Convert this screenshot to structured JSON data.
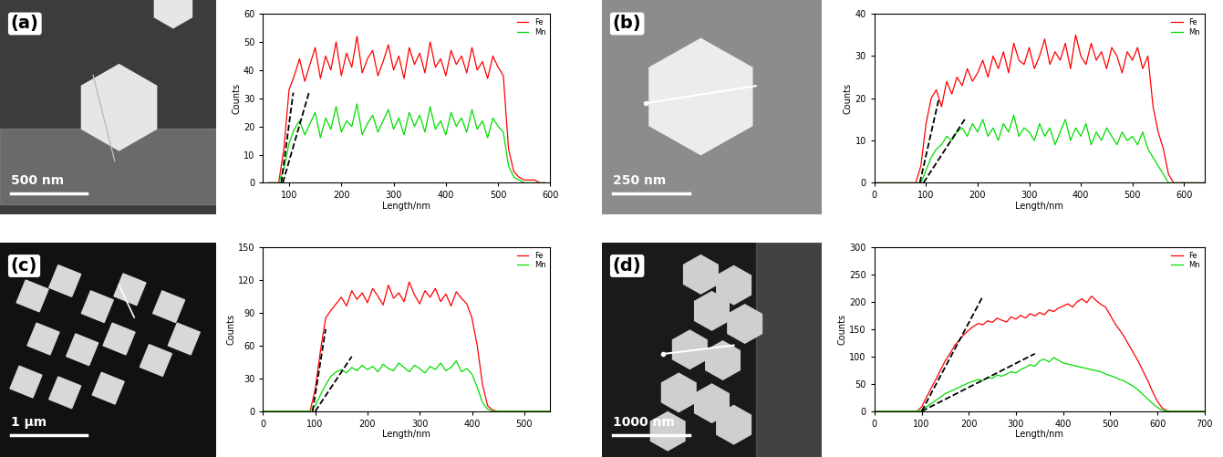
{
  "chart_data": [
    {
      "type": "line",
      "annotations": {
        "panel": "(a)",
        "scale_bar": "500 nm"
      },
      "x_label": "Length/nm",
      "y_label": "Counts",
      "legend": "upper right",
      "xlim": [
        50,
        600
      ],
      "xticks": [
        100,
        200,
        300,
        400,
        500,
        600
      ],
      "ylim": [
        0,
        60
      ],
      "yticks": [
        0,
        10,
        20,
        30,
        40,
        50,
        60
      ],
      "x": [
        60,
        70,
        80,
        90,
        100,
        110,
        120,
        130,
        140,
        150,
        160,
        170,
        180,
        190,
        200,
        210,
        220,
        230,
        240,
        250,
        260,
        270,
        280,
        290,
        300,
        310,
        320,
        330,
        340,
        350,
        360,
        370,
        380,
        390,
        400,
        410,
        420,
        430,
        440,
        450,
        460,
        470,
        480,
        490,
        500,
        510,
        520,
        530,
        540,
        550,
        560,
        570,
        580,
        590
      ],
      "series": [
        {
          "name": "Fe",
          "color": "#ff0000",
          "values": [
            0,
            0,
            0,
            12,
            33,
            38,
            44,
            36,
            42,
            48,
            37,
            45,
            40,
            50,
            38,
            46,
            41,
            52,
            39,
            44,
            47,
            38,
            43,
            49,
            40,
            45,
            37,
            48,
            42,
            46,
            39,
            50,
            41,
            44,
            38,
            47,
            42,
            45,
            39,
            48,
            40,
            43,
            37,
            45,
            41,
            38,
            12,
            4,
            2,
            1,
            1,
            1,
            0,
            0
          ]
        },
        {
          "name": "Mn",
          "color": "#00dd00",
          "values": [
            0,
            0,
            0,
            5,
            14,
            19,
            22,
            17,
            21,
            25,
            16,
            23,
            19,
            27,
            18,
            22,
            20,
            28,
            17,
            21,
            24,
            18,
            22,
            26,
            19,
            23,
            17,
            25,
            20,
            24,
            18,
            27,
            19,
            22,
            17,
            25,
            20,
            23,
            18,
            26,
            19,
            22,
            16,
            23,
            20,
            18,
            6,
            2,
            1,
            0,
            0,
            0,
            0,
            0
          ]
        }
      ],
      "guide_lines": [
        {
          "x": [
            85,
            108
          ],
          "y": [
            0,
            32
          ],
          "line_style": "dashed"
        },
        {
          "x": [
            88,
            138
          ],
          "y": [
            0,
            32
          ],
          "line_style": "dashed"
        }
      ]
    },
    {
      "type": "line",
      "annotations": {
        "panel": "(b)",
        "scale_bar": "250 nm"
      },
      "x_label": "Length/nm",
      "y_label": "Counts",
      "legend": "upper right",
      "xlim": [
        0,
        640
      ],
      "xticks": [
        0,
        100,
        200,
        300,
        400,
        500,
        600
      ],
      "ylim": [
        0,
        40
      ],
      "yticks": [
        0,
        10,
        20,
        30,
        40
      ],
      "x": [
        0,
        10,
        20,
        30,
        40,
        50,
        60,
        70,
        80,
        90,
        100,
        110,
        120,
        130,
        140,
        150,
        160,
        170,
        180,
        190,
        200,
        210,
        220,
        230,
        240,
        250,
        260,
        270,
        280,
        290,
        300,
        310,
        320,
        330,
        340,
        350,
        360,
        370,
        380,
        390,
        400,
        410,
        420,
        430,
        440,
        450,
        460,
        470,
        480,
        490,
        500,
        510,
        520,
        530,
        540,
        550,
        560,
        570,
        580,
        590,
        600,
        610,
        620,
        630,
        640
      ],
      "series": [
        {
          "name": "Fe",
          "color": "#ff0000",
          "values": [
            0,
            0,
            0,
            0,
            0,
            0,
            0,
            0,
            0,
            4,
            14,
            20,
            22,
            18,
            24,
            21,
            25,
            23,
            27,
            24,
            26,
            29,
            25,
            30,
            27,
            31,
            26,
            33,
            29,
            28,
            32,
            27,
            30,
            34,
            28,
            31,
            29,
            33,
            27,
            35,
            30,
            28,
            33,
            29,
            31,
            27,
            32,
            30,
            26,
            31,
            29,
            32,
            27,
            30,
            18,
            12,
            8,
            2,
            0,
            0,
            0,
            0,
            0,
            0,
            0
          ]
        },
        {
          "name": "Mn",
          "color": "#00dd00",
          "values": [
            0,
            0,
            0,
            0,
            0,
            0,
            0,
            0,
            0,
            0,
            3,
            6,
            8,
            9,
            11,
            10,
            12,
            13,
            11,
            14,
            12,
            15,
            11,
            13,
            10,
            14,
            12,
            16,
            11,
            13,
            12,
            10,
            14,
            11,
            13,
            9,
            12,
            15,
            10,
            13,
            11,
            14,
            9,
            12,
            10,
            13,
            11,
            9,
            12,
            10,
            11,
            9,
            12,
            8,
            6,
            4,
            2,
            0,
            0,
            0,
            0,
            0,
            0,
            0,
            0
          ]
        }
      ],
      "guide_lines": [
        {
          "x": [
            88,
            125
          ],
          "y": [
            0,
            20
          ],
          "line_style": "dashed"
        },
        {
          "x": [
            95,
            175
          ],
          "y": [
            0,
            15
          ],
          "line_style": "dashed"
        }
      ]
    },
    {
      "type": "line",
      "annotations": {
        "panel": "(c)",
        "scale_bar": "1 μm"
      },
      "x_label": "Length/nm",
      "y_label": "Counts",
      "legend": "upper right",
      "xlim": [
        0,
        550
      ],
      "xticks": [
        0,
        100,
        200,
        300,
        400,
        500
      ],
      "ylim": [
        0,
        150
      ],
      "yticks": [
        0,
        30,
        60,
        90,
        120,
        150
      ],
      "x": [
        0,
        10,
        20,
        30,
        40,
        50,
        60,
        70,
        80,
        90,
        100,
        110,
        120,
        130,
        140,
        150,
        160,
        170,
        180,
        190,
        200,
        210,
        220,
        230,
        240,
        250,
        260,
        270,
        280,
        290,
        300,
        310,
        320,
        330,
        340,
        350,
        360,
        370,
        380,
        390,
        400,
        410,
        420,
        430,
        440,
        450,
        460,
        470,
        480,
        490,
        500,
        510,
        520,
        530,
        540,
        550
      ],
      "series": [
        {
          "name": "Fe",
          "color": "#ff0000",
          "values": [
            0,
            0,
            0,
            0,
            0,
            0,
            0,
            0,
            0,
            0,
            20,
            55,
            85,
            92,
            98,
            104,
            96,
            110,
            102,
            108,
            99,
            112,
            105,
            97,
            115,
            103,
            108,
            100,
            118,
            106,
            98,
            110,
            104,
            112,
            100,
            107,
            96,
            109,
            103,
            98,
            85,
            60,
            25,
            5,
            1,
            0,
            0,
            0,
            0,
            0,
            0,
            0,
            0,
            0,
            0,
            0
          ]
        },
        {
          "name": "Mn",
          "color": "#00dd00",
          "values": [
            0,
            0,
            0,
            0,
            0,
            0,
            0,
            0,
            0,
            0,
            5,
            15,
            24,
            32,
            36,
            38,
            35,
            40,
            37,
            42,
            38,
            41,
            36,
            43,
            39,
            37,
            44,
            40,
            36,
            42,
            39,
            35,
            41,
            38,
            44,
            37,
            40,
            46,
            36,
            39,
            34,
            22,
            8,
            2,
            0,
            0,
            0,
            0,
            0,
            0,
            0,
            0,
            0,
            0,
            0,
            0
          ]
        }
      ],
      "guide_lines": [
        {
          "x": [
            95,
            120
          ],
          "y": [
            0,
            75
          ],
          "line_style": "dashed"
        },
        {
          "x": [
            100,
            170
          ],
          "y": [
            0,
            50
          ],
          "line_style": "dashed"
        }
      ]
    },
    {
      "type": "line",
      "annotations": {
        "panel": "(d)",
        "scale_bar": "1000 nm"
      },
      "x_label": "Length/nm",
      "y_label": "Counts",
      "legend": "upper right",
      "xlim": [
        0,
        700
      ],
      "xticks": [
        0,
        100,
        200,
        300,
        400,
        500,
        600,
        700
      ],
      "ylim": [
        0,
        300
      ],
      "yticks": [
        0,
        50,
        100,
        150,
        200,
        250,
        300
      ],
      "x": [
        0,
        10,
        20,
        30,
        40,
        50,
        60,
        70,
        80,
        90,
        100,
        110,
        120,
        130,
        140,
        150,
        160,
        170,
        180,
        190,
        200,
        210,
        220,
        230,
        240,
        250,
        260,
        270,
        280,
        290,
        300,
        310,
        320,
        330,
        340,
        350,
        360,
        370,
        380,
        390,
        400,
        410,
        420,
        430,
        440,
        450,
        460,
        470,
        480,
        490,
        500,
        510,
        520,
        530,
        540,
        550,
        560,
        570,
        580,
        590,
        600,
        610,
        620,
        630,
        640,
        650,
        660,
        670,
        680,
        690,
        700
      ],
      "series": [
        {
          "name": "Fe",
          "color": "#ff0000",
          "values": [
            0,
            0,
            0,
            0,
            0,
            0,
            0,
            0,
            0,
            0,
            8,
            25,
            42,
            58,
            75,
            92,
            105,
            120,
            130,
            140,
            148,
            155,
            160,
            158,
            165,
            162,
            170,
            166,
            163,
            172,
            168,
            175,
            170,
            178,
            174,
            180,
            176,
            185,
            182,
            188,
            192,
            196,
            190,
            200,
            205,
            198,
            210,
            202,
            195,
            190,
            175,
            160,
            148,
            135,
            120,
            105,
            90,
            72,
            55,
            35,
            18,
            6,
            1,
            0,
            0,
            0,
            0,
            0,
            0,
            0,
            0
          ]
        },
        {
          "name": "Mn",
          "color": "#00dd00",
          "values": [
            0,
            0,
            0,
            0,
            0,
            0,
            0,
            0,
            0,
            0,
            2,
            8,
            14,
            20,
            26,
            32,
            36,
            40,
            44,
            48,
            52,
            55,
            58,
            56,
            62,
            60,
            66,
            64,
            68,
            72,
            70,
            76,
            80,
            85,
            82,
            92,
            95,
            90,
            98,
            93,
            88,
            86,
            84,
            82,
            80,
            78,
            76,
            74,
            72,
            68,
            65,
            62,
            58,
            55,
            50,
            45,
            38,
            30,
            22,
            14,
            7,
            2,
            0,
            0,
            0,
            0,
            0,
            0,
            0,
            0,
            0
          ]
        }
      ],
      "guide_lines": [
        {
          "x": [
            100,
            230
          ],
          "y": [
            0,
            210
          ],
          "line_style": "dashed"
        },
        {
          "x": [
            100,
            340
          ],
          "y": [
            0,
            105
          ],
          "line_style": "dashed"
        }
      ]
    }
  ]
}
